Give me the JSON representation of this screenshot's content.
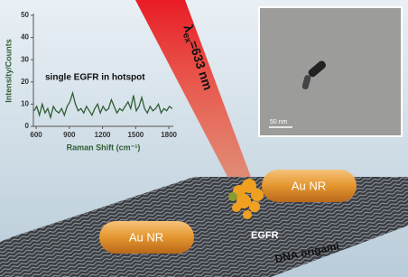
{
  "chart_data": {
    "type": "line",
    "annotation": "single EGFR in hotspot",
    "xlabel": "Raman Shift (cm⁻¹)",
    "ylabel": "Intensity/Counts",
    "x": [
      580,
      605,
      630,
      655,
      680,
      705,
      730,
      755,
      780,
      805,
      830,
      855,
      880,
      905,
      930,
      955,
      980,
      1005,
      1030,
      1055,
      1080,
      1105,
      1130,
      1155,
      1180,
      1205,
      1230,
      1255,
      1280,
      1305,
      1330,
      1355,
      1380,
      1405,
      1430,
      1455,
      1480,
      1505,
      1530,
      1555,
      1580,
      1605,
      1630,
      1655,
      1680,
      1705,
      1730,
      1755,
      1780,
      1805,
      1830
    ],
    "series": [
      {
        "color": "#2f5d34",
        "values": [
          7,
          9,
          5,
          10,
          6,
          8,
          4,
          9,
          7,
          6,
          8,
          5,
          9,
          11,
          15,
          10,
          7,
          8,
          6,
          9,
          7,
          5,
          8,
          10,
          6,
          9,
          7,
          8,
          12,
          9,
          6,
          8,
          7,
          9,
          11,
          8,
          14,
          7,
          9,
          13,
          8,
          6,
          9,
          7,
          8,
          10,
          6,
          8,
          7,
          9,
          8
        ]
      }
    ],
    "xlim": [
      575,
      1840
    ],
    "xticks": [
      600,
      900,
      1200,
      1500,
      1800
    ],
    "ylim": [
      0,
      50
    ],
    "yticks": [
      0,
      10,
      20,
      30,
      40,
      50
    ]
  },
  "laser": {
    "symbol": "λ",
    "subscript": "ex",
    "text": "=633 nm"
  },
  "tem_scale_bar": "50 nm",
  "labels": {
    "nanorod_1": "Au NR",
    "nanorod_2": "Au NR",
    "protein": "EGFR",
    "origami": "DNA origami"
  }
}
